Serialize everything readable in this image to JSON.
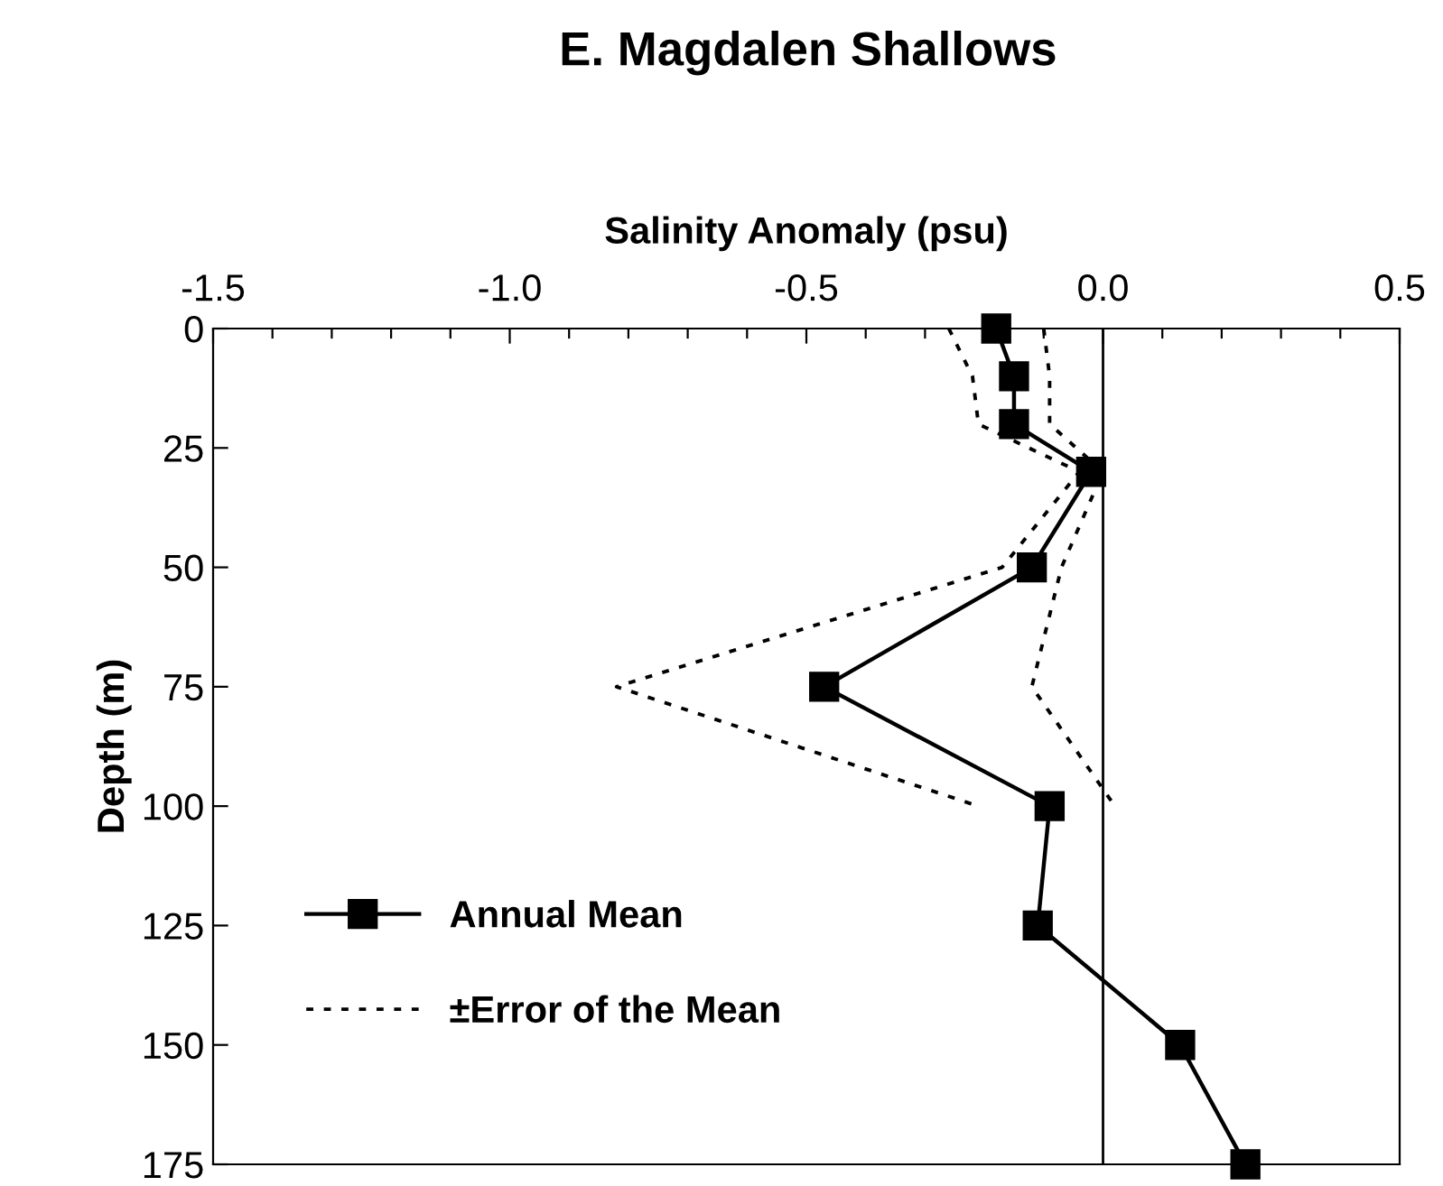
{
  "chart_data": {
    "type": "line",
    "title": "E. Magdalen Shallows",
    "xlabel": "Salinity Anomaly (psu)",
    "ylabel": "Depth (m)",
    "orientation": "horizontal",
    "x": [
      0,
      10,
      20,
      30,
      50,
      75,
      100,
      125,
      150,
      175
    ],
    "series": [
      {
        "name": "Annual Mean",
        "color": "#000000",
        "marker": "square",
        "line_style": "solid",
        "values": [
          -0.18,
          -0.15,
          -0.15,
          -0.02,
          -0.12,
          -0.47,
          -0.09,
          -0.11,
          0.13,
          0.24
        ]
      },
      {
        "name": "±Error of the Mean",
        "color": "#000000",
        "marker": "none",
        "line_style": "dotted",
        "values": [
          -0.26,
          -0.22,
          -0.21,
          -0.04,
          -0.17,
          -0.82,
          -0.21,
          null,
          null,
          null
        ]
      },
      {
        "color": "#000000",
        "marker": "none",
        "line_style": "dotted",
        "values": [
          -0.1,
          -0.09,
          -0.09,
          0.0,
          -0.07,
          -0.12,
          0.02,
          null,
          null,
          null
        ]
      }
    ],
    "xlim": [
      -1.5,
      0.5
    ],
    "xticks": [
      -1.5,
      {
        "value": -1.4,
        "label": null
      },
      {
        "value": -1.3,
        "label": null
      },
      {
        "value": -1.2,
        "label": null
      },
      {
        "value": -1.1,
        "label": null
      },
      {
        "value": -1.0,
        "label": "-1.0"
      },
      {
        "value": -0.9,
        "label": null
      },
      {
        "value": -0.8,
        "label": null
      },
      {
        "value": -0.7,
        "label": null
      },
      {
        "value": -0.6,
        "label": null
      },
      -0.5,
      {
        "value": -0.4,
        "label": null
      },
      {
        "value": -0.3,
        "label": null
      },
      {
        "value": -0.2,
        "label": null
      },
      {
        "value": -0.1,
        "label": null
      },
      {
        "value": 0.0,
        "label": "0.0"
      },
      {
        "value": 0.1,
        "label": null
      },
      {
        "value": 0.2,
        "label": null
      },
      {
        "value": 0.3,
        "label": null
      },
      {
        "value": 0.4,
        "label": null
      },
      0.5
    ],
    "ylim": [
      175,
      0
    ],
    "yticks": [
      0,
      25,
      50,
      75,
      100,
      125,
      150,
      175
    ],
    "ref_lines": [
      {
        "axis": "x",
        "value": 0,
        "color": "#000000"
      }
    ],
    "grid": false,
    "legend": "bottom left"
  }
}
